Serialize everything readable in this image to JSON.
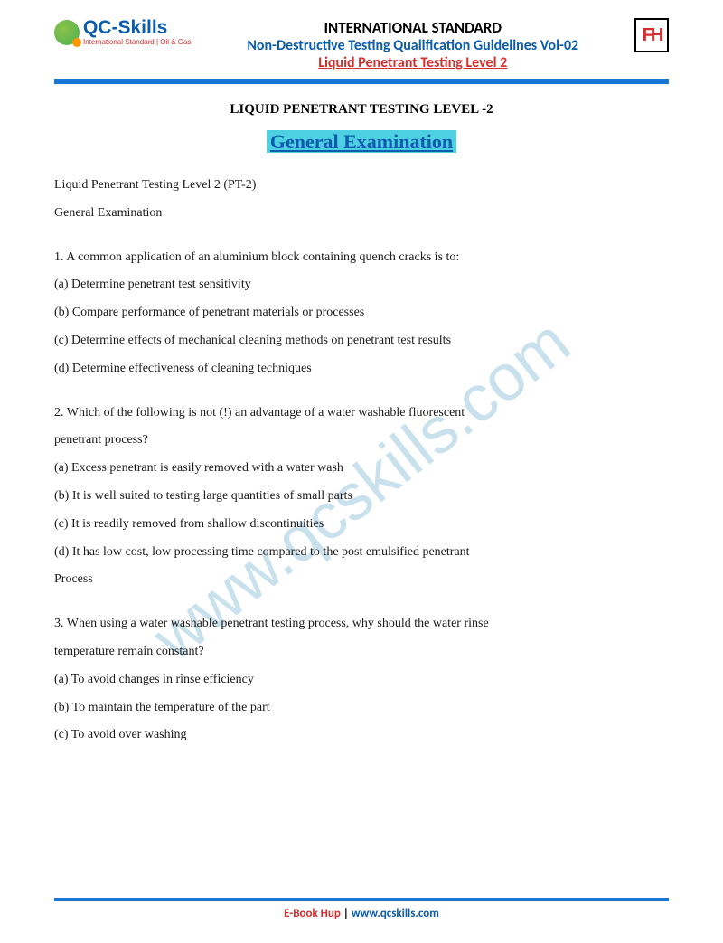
{
  "header": {
    "logo_main": "QC-Skills",
    "logo_sub": "International Standard | Oil & Gas",
    "line1": "INTERNATIONAL STANDARD",
    "line2": "Non-Destructive Testing Qualification Guidelines Vol-02",
    "line3": "Liquid Penetrant Testing Level 2",
    "right_logo": "FH"
  },
  "titles": {
    "title1": "LIQUID PENETRANT TESTING LEVEL -2",
    "title2": "General Examination"
  },
  "intro": {
    "line1": "Liquid Penetrant Testing Level 2 (PT-2)",
    "line2": "General Examination"
  },
  "q1": {
    "stem": "1. A common application of an aluminium block containing quench cracks is to:",
    "a": "(a) Determine penetrant test sensitivity",
    "b": "(b) Compare performance of penetrant materials or processes",
    "c": "(c) Determine effects of mechanical cleaning methods on penetrant test results",
    "d": "(d) Determine effectiveness of cleaning techniques"
  },
  "q2": {
    "stem1": "2. Which of the following is not (!) an advantage of a water washable fluorescent",
    "stem2": "penetrant process?",
    "a": "(a) Excess penetrant is easily removed with a water wash",
    "b": "(b) It is well suited to testing large quantities of small parts",
    "c": "(c) It is readily removed from shallow discontinuities",
    "d": "(d) It has low cost, low processing time compared to the post emulsified penetrant",
    "d2": "Process"
  },
  "q3": {
    "stem1": "3. When using a water washable penetrant testing process, why should the water rinse",
    "stem2": "temperature remain constant?",
    "a": "(a) To avoid changes in rinse efficiency",
    "b": "(b) To maintain the temperature of the part",
    "c": "(c) To avoid over washing"
  },
  "watermark": "www.qcskills.com",
  "footer": {
    "ebook": "E-Book Hup",
    "sep": " | ",
    "url": "www.qcskills.com"
  },
  "colors": {
    "blue": "#0b5cab",
    "red": "#d32f2f",
    "bar": "#1976d2",
    "highlight": "#4dd0e1",
    "watermark": "rgba(100,170,200,0.35)"
  }
}
